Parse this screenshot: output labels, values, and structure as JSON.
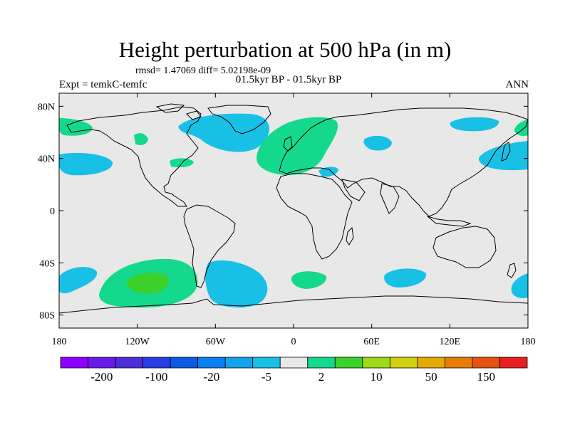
{
  "title": "Height perturbation at 500 hPa (in m)",
  "stats": "rmsd= 1.47069 diff= 5.02198e-09",
  "experiment": "Expt = temkC-temfc",
  "period": "01.5kyr BP - 01.5kyr BP",
  "season": "ANN",
  "lat_labels": [
    "80N",
    "40N",
    "0",
    "40S",
    "80S"
  ],
  "lat_values": [
    80,
    40,
    0,
    -40,
    -80
  ],
  "lon_labels": [
    "180",
    "120W",
    "60W",
    "0",
    "60E",
    "120E",
    "180"
  ],
  "lon_values": [
    -180,
    -120,
    -60,
    0,
    60,
    120,
    180
  ],
  "colorbar": {
    "colors": [
      "#8b00ff",
      "#6a1ae8",
      "#4d2ed8",
      "#2a3ee6",
      "#0b5ae6",
      "#0a7ff0",
      "#14a3ea",
      "#19c0e6",
      "#e8e8e8",
      "#14d98c",
      "#3cd02a",
      "#9ddb1a",
      "#d2cf10",
      "#e2aa05",
      "#e67d05",
      "#e65212",
      "#e62020"
    ],
    "labels": [
      "-200",
      "-100",
      "-20",
      "-5",
      "2",
      "10",
      "50",
      "150"
    ]
  },
  "colors": {
    "background": "#e8e8e8",
    "negative": "#19c0e6",
    "positive": "#14d98c",
    "positive_strong": "#3cd02a"
  }
}
